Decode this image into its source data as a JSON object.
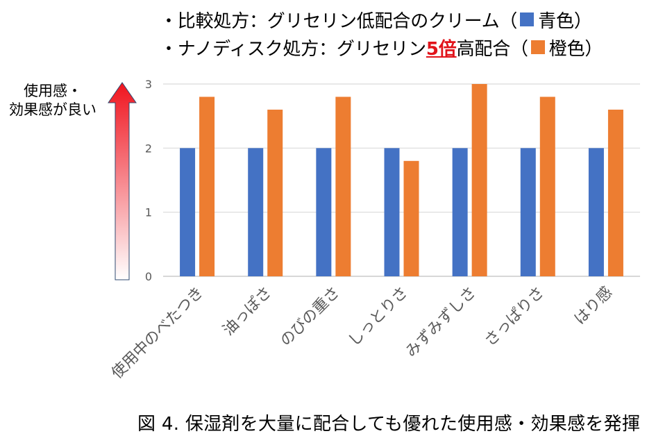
{
  "legend": {
    "line1_prefix": "・比較処方：グリセリン低配合のクリーム（",
    "line1_color_name": "青色",
    "line1_suffix": "）",
    "line2_prefix": "・ナノディスク処方：グリセリン",
    "line2_emphasis": "5倍",
    "line2_mid": "高配合（",
    "line2_color_name": "橙色",
    "line2_suffix": "）"
  },
  "side_label": {
    "line1": "使用感・",
    "line2": "効果感が良い"
  },
  "caption": "図 4.  保湿剤を大量に配合しても優れた使用感・効果感を発揮",
  "colors": {
    "blue": "#4472c4",
    "orange": "#ed7d31",
    "emphasis": "#e1141b",
    "arrow": "#f0141e",
    "grid": "#d9d9d9"
  },
  "chart_data": {
    "type": "bar",
    "categories": [
      "使用中のべたつき",
      "油っぽさ",
      "のびの重さ",
      "しっとりさ",
      "みずみずしさ",
      "さっぱりさ",
      "はり感"
    ],
    "series": [
      {
        "name": "比較処方",
        "color": "#4472c4",
        "values": [
          2,
          2,
          2,
          2,
          2,
          2,
          2
        ]
      },
      {
        "name": "ナノディスク処方",
        "color": "#ed7d31",
        "values": [
          2.8,
          2.6,
          2.8,
          1.8,
          3.0,
          2.8,
          2.6
        ]
      }
    ],
    "yticks": [
      0,
      1,
      2,
      3
    ],
    "ylim": [
      0,
      3
    ],
    "grid": true,
    "legend": "top",
    "xlabel": "",
    "ylabel": ""
  }
}
